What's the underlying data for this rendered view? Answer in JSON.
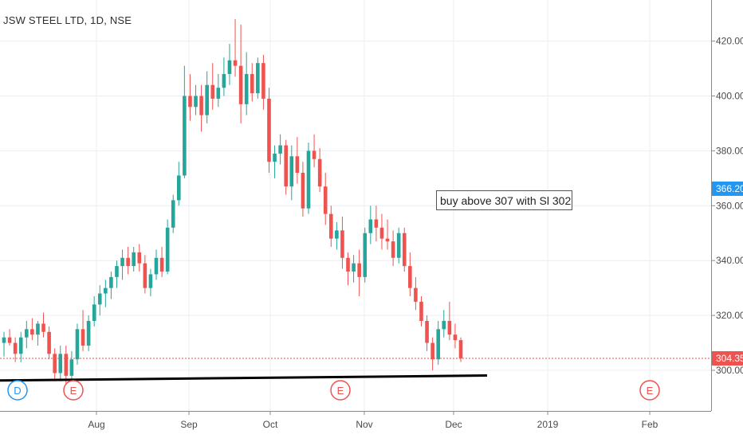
{
  "chart_data": {
    "type": "candlestick",
    "title": "JSW STEEL LTD, 1D, NSE",
    "y_ticks": [
      300,
      320,
      340,
      360,
      380,
      400,
      420
    ],
    "y_tick_labels": [
      "300.00",
      "320.00",
      "340.00",
      "360.00",
      "380.00",
      "400.00",
      "420.00"
    ],
    "x_tick_labels": [
      "Aug",
      "Sep",
      "Oct",
      "Nov",
      "Dec",
      "2019",
      "Feb"
    ],
    "ylim": [
      284,
      432
    ],
    "grid": true,
    "last_price_label": "304.35",
    "last_price_value": 304.35,
    "marked_price_label": "366.20",
    "marked_price_value": 366.2,
    "support_line": {
      "start_value": 296.3,
      "end_value": 298.1
    },
    "annotation": "buy above 307 with Sl 302",
    "events": [
      {
        "label": "D",
        "color": "#2196f3"
      },
      {
        "label": "E",
        "color": "#ef5350"
      },
      {
        "label": "E",
        "color": "#ef5350"
      },
      {
        "label": "E",
        "color": "#ef5350"
      }
    ],
    "candles": [
      {
        "o": 310,
        "h": 314,
        "l": 305,
        "c": 312
      },
      {
        "o": 312,
        "h": 315,
        "l": 309,
        "c": 310
      },
      {
        "o": 310,
        "h": 312,
        "l": 303,
        "c": 306
      },
      {
        "o": 306,
        "h": 314,
        "l": 303,
        "c": 312
      },
      {
        "o": 312,
        "h": 318,
        "l": 308,
        "c": 315
      },
      {
        "o": 315,
        "h": 319,
        "l": 311,
        "c": 313
      },
      {
        "o": 313,
        "h": 318,
        "l": 309,
        "c": 317
      },
      {
        "o": 317,
        "h": 321,
        "l": 312,
        "c": 314
      },
      {
        "o": 314,
        "h": 316,
        "l": 304,
        "c": 306
      },
      {
        "o": 306,
        "h": 308,
        "l": 296,
        "c": 299
      },
      {
        "o": 299,
        "h": 309,
        "l": 296,
        "c": 306
      },
      {
        "o": 306,
        "h": 309,
        "l": 294,
        "c": 298
      },
      {
        "o": 298,
        "h": 307,
        "l": 296,
        "c": 304
      },
      {
        "o": 304,
        "h": 317,
        "l": 302,
        "c": 315
      },
      {
        "o": 315,
        "h": 322,
        "l": 307,
        "c": 309
      },
      {
        "o": 309,
        "h": 320,
        "l": 307,
        "c": 318
      },
      {
        "o": 318,
        "h": 327,
        "l": 316,
        "c": 324
      },
      {
        "o": 324,
        "h": 331,
        "l": 320,
        "c": 328
      },
      {
        "o": 328,
        "h": 333,
        "l": 323,
        "c": 330
      },
      {
        "o": 330,
        "h": 336,
        "l": 326,
        "c": 334
      },
      {
        "o": 334,
        "h": 340,
        "l": 330,
        "c": 338
      },
      {
        "o": 338,
        "h": 344,
        "l": 333,
        "c": 341
      },
      {
        "o": 341,
        "h": 345,
        "l": 335,
        "c": 338
      },
      {
        "o": 338,
        "h": 345,
        "l": 336,
        "c": 343
      },
      {
        "o": 343,
        "h": 346,
        "l": 336,
        "c": 339
      },
      {
        "o": 339,
        "h": 342,
        "l": 328,
        "c": 330
      },
      {
        "o": 330,
        "h": 337,
        "l": 327,
        "c": 335
      },
      {
        "o": 335,
        "h": 344,
        "l": 333,
        "c": 341
      },
      {
        "o": 341,
        "h": 345,
        "l": 334,
        "c": 336
      },
      {
        "o": 336,
        "h": 355,
        "l": 335,
        "c": 352
      },
      {
        "o": 352,
        "h": 364,
        "l": 350,
        "c": 362
      },
      {
        "o": 362,
        "h": 376,
        "l": 360,
        "c": 371
      },
      {
        "o": 371,
        "h": 411,
        "l": 370,
        "c": 400
      },
      {
        "o": 400,
        "h": 408,
        "l": 391,
        "c": 396
      },
      {
        "o": 396,
        "h": 404,
        "l": 393,
        "c": 400
      },
      {
        "o": 400,
        "h": 404,
        "l": 387,
        "c": 393
      },
      {
        "o": 393,
        "h": 409,
        "l": 390,
        "c": 404
      },
      {
        "o": 404,
        "h": 412,
        "l": 395,
        "c": 399
      },
      {
        "o": 399,
        "h": 408,
        "l": 396,
        "c": 403
      },
      {
        "o": 403,
        "h": 414,
        "l": 400,
        "c": 408
      },
      {
        "o": 408,
        "h": 419,
        "l": 404,
        "c": 413
      },
      {
        "o": 413,
        "h": 428,
        "l": 407,
        "c": 411
      },
      {
        "o": 411,
        "h": 426,
        "l": 390,
        "c": 397
      },
      {
        "o": 397,
        "h": 416,
        "l": 393,
        "c": 408
      },
      {
        "o": 408,
        "h": 412,
        "l": 398,
        "c": 401
      },
      {
        "o": 401,
        "h": 414,
        "l": 399,
        "c": 412
      },
      {
        "o": 412,
        "h": 415,
        "l": 395,
        "c": 399
      },
      {
        "o": 399,
        "h": 403,
        "l": 372,
        "c": 376
      },
      {
        "o": 376,
        "h": 382,
        "l": 370,
        "c": 379
      },
      {
        "o": 379,
        "h": 386,
        "l": 375,
        "c": 382
      },
      {
        "o": 382,
        "h": 384,
        "l": 364,
        "c": 367
      },
      {
        "o": 367,
        "h": 382,
        "l": 362,
        "c": 378
      },
      {
        "o": 378,
        "h": 385,
        "l": 368,
        "c": 372
      },
      {
        "o": 372,
        "h": 376,
        "l": 356,
        "c": 359
      },
      {
        "o": 359,
        "h": 383,
        "l": 357,
        "c": 380
      },
      {
        "o": 380,
        "h": 386,
        "l": 374,
        "c": 377
      },
      {
        "o": 377,
        "h": 381,
        "l": 365,
        "c": 367
      },
      {
        "o": 367,
        "h": 372,
        "l": 353,
        "c": 357
      },
      {
        "o": 357,
        "h": 360,
        "l": 345,
        "c": 348
      },
      {
        "o": 348,
        "h": 354,
        "l": 344,
        "c": 351
      },
      {
        "o": 351,
        "h": 356,
        "l": 337,
        "c": 341
      },
      {
        "o": 341,
        "h": 343,
        "l": 331,
        "c": 336
      },
      {
        "o": 336,
        "h": 342,
        "l": 332,
        "c": 339
      },
      {
        "o": 339,
        "h": 344,
        "l": 327,
        "c": 334
      },
      {
        "o": 334,
        "h": 352,
        "l": 332,
        "c": 350
      },
      {
        "o": 350,
        "h": 360,
        "l": 346,
        "c": 355
      },
      {
        "o": 355,
        "h": 360,
        "l": 347,
        "c": 352
      },
      {
        "o": 352,
        "h": 357,
        "l": 344,
        "c": 348
      },
      {
        "o": 348,
        "h": 355,
        "l": 344,
        "c": 347
      },
      {
        "o": 347,
        "h": 351,
        "l": 338,
        "c": 341
      },
      {
        "o": 341,
        "h": 352,
        "l": 339,
        "c": 350
      },
      {
        "o": 350,
        "h": 352,
        "l": 336,
        "c": 338
      },
      {
        "o": 338,
        "h": 343,
        "l": 327,
        "c": 330
      },
      {
        "o": 330,
        "h": 334,
        "l": 322,
        "c": 325
      },
      {
        "o": 325,
        "h": 327,
        "l": 316,
        "c": 318
      },
      {
        "o": 318,
        "h": 320,
        "l": 307,
        "c": 310
      },
      {
        "o": 310,
        "h": 312,
        "l": 300,
        "c": 304
      },
      {
        "o": 304,
        "h": 318,
        "l": 302,
        "c": 315
      },
      {
        "o": 315,
        "h": 322,
        "l": 312,
        "c": 318
      },
      {
        "o": 318,
        "h": 325,
        "l": 311,
        "c": 313
      },
      {
        "o": 313,
        "h": 317,
        "l": 308,
        "c": 311
      },
      {
        "o": 311,
        "h": 312,
        "l": 303,
        "c": 304.35
      }
    ]
  }
}
